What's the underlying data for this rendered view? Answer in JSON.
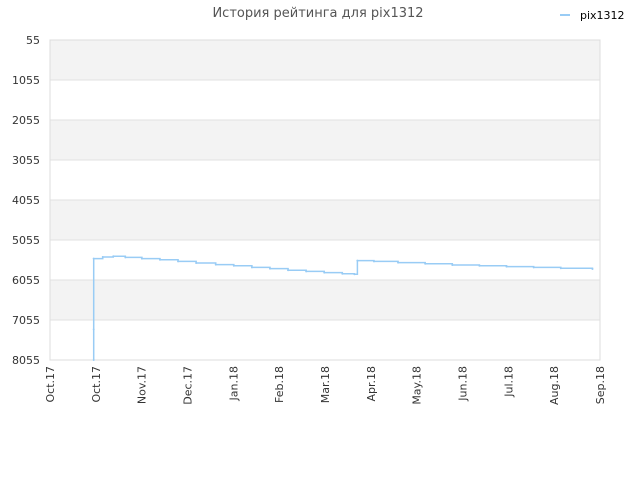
{
  "chart_data": {
    "type": "line",
    "title": "История рейтинга для pix1312",
    "legend": {
      "position": "top-right"
    },
    "y_reversed": true,
    "ylim": [
      55,
      8055
    ],
    "y_ticks": [
      "55",
      "1055",
      "2055",
      "3055",
      "4055",
      "5055",
      "6055",
      "7055",
      "8055"
    ],
    "x_range": [
      "2017-09-15",
      "2018-09-15"
    ],
    "x_ticks": [
      "Oct.17",
      "Oct.17",
      "Nov.17",
      "Dec.17",
      "Jan.18",
      "Feb.18",
      "Mar.18",
      "Apr.18",
      "May.18",
      "Jun.18",
      "Jul.18",
      "Aug.18",
      "Sep.18"
    ],
    "grid": true,
    "series": [
      {
        "name": "pix1312",
        "color": "#99ccf5",
        "points": [
          [
            "2017-10-14",
            8055
          ],
          [
            "2017-10-14",
            7290
          ],
          [
            "2017-10-14",
            5520
          ],
          [
            "2017-10-20",
            5480
          ],
          [
            "2017-10-27",
            5460
          ],
          [
            "2017-11-04",
            5490
          ],
          [
            "2017-11-15",
            5520
          ],
          [
            "2017-11-27",
            5550
          ],
          [
            "2017-12-09",
            5590
          ],
          [
            "2017-12-21",
            5630
          ],
          [
            "2018-01-03",
            5670
          ],
          [
            "2018-01-15",
            5700
          ],
          [
            "2018-01-27",
            5740
          ],
          [
            "2018-02-08",
            5770
          ],
          [
            "2018-02-20",
            5810
          ],
          [
            "2018-03-04",
            5840
          ],
          [
            "2018-03-16",
            5870
          ],
          [
            "2018-03-28",
            5900
          ],
          [
            "2018-04-05",
            5910
          ],
          [
            "2018-04-07",
            5570
          ],
          [
            "2018-04-18",
            5590
          ],
          [
            "2018-05-04",
            5620
          ],
          [
            "2018-05-22",
            5650
          ],
          [
            "2018-06-09",
            5680
          ],
          [
            "2018-06-27",
            5700
          ],
          [
            "2018-07-15",
            5720
          ],
          [
            "2018-08-02",
            5740
          ],
          [
            "2018-08-20",
            5760
          ],
          [
            "2018-09-10",
            5780
          ]
        ]
      }
    ]
  }
}
